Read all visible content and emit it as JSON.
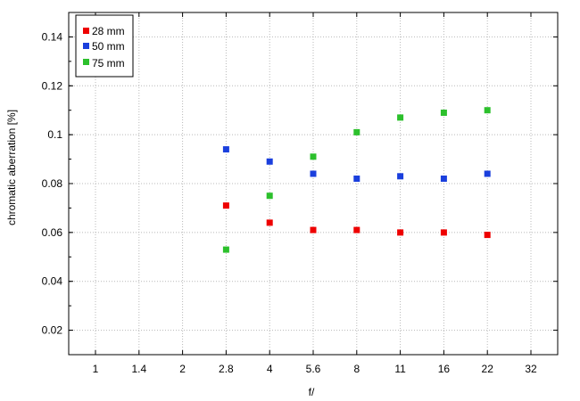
{
  "chart_data": {
    "type": "scatter",
    "title": "",
    "xlabel": "f/",
    "ylabel": "chromatic  aberration [%]",
    "x_ticks": [
      "1",
      "1.4",
      "2",
      "2.8",
      "4",
      "5.6",
      "8",
      "11",
      "16",
      "22",
      "32"
    ],
    "x": [
      "2.8",
      "4",
      "5.6",
      "8",
      "11",
      "16",
      "22"
    ],
    "ylim": [
      0.01,
      0.15
    ],
    "y_ticks": [
      0.02,
      0.04,
      0.06,
      0.08,
      0.1,
      0.12,
      0.14
    ],
    "y_tick_labels": [
      "0.02",
      "0.04",
      "0.06",
      "0.08",
      "0.1",
      "0.12",
      "0.14"
    ],
    "grid": true,
    "legend_position": "top-left",
    "series": [
      {
        "name": "28 mm",
        "color": "#ee0000",
        "values": [
          0.071,
          0.064,
          0.061,
          0.061,
          0.06,
          0.06,
          0.059
        ]
      },
      {
        "name": "50 mm",
        "color": "#1a3fdd",
        "values": [
          0.094,
          0.089,
          0.084,
          0.082,
          0.083,
          0.082,
          0.084
        ]
      },
      {
        "name": "75 mm",
        "color": "#2cc02c",
        "values": [
          0.053,
          0.075,
          0.091,
          0.101,
          0.107,
          0.109,
          0.11
        ]
      }
    ]
  }
}
